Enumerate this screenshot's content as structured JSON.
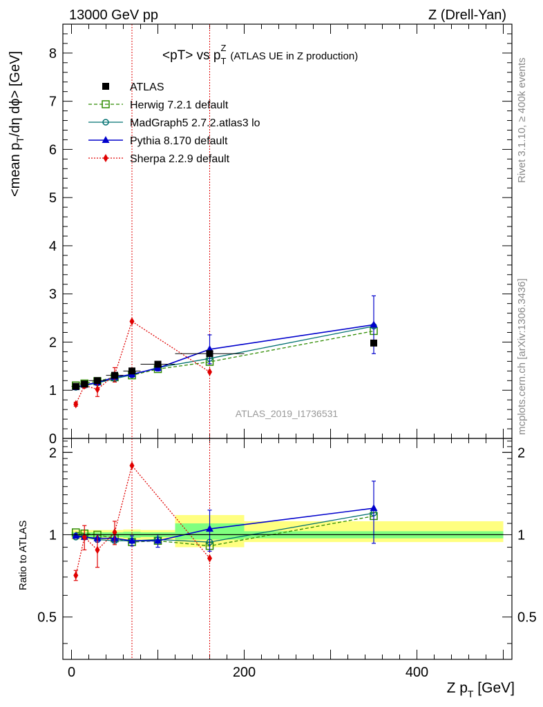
{
  "header": {
    "left": "13000 GeV pp",
    "right": "Z (Drell-Yan)"
  },
  "side": {
    "rivet": "Rivet 3.1.10, ≥ 400k events",
    "mcplots": "mcplots.cern.ch [arXiv:1306.3436]"
  },
  "watermark": "ATLAS_2019_I1736531",
  "colors": {
    "data": "#000000",
    "herwig": "#2e8b00",
    "madgraph": "#007070",
    "pythia": "#0000cc",
    "sherpa": "#e00000",
    "band_inner": "#80ff80",
    "band_outer": "#ffff80"
  },
  "chart_data": [
    {
      "type": "line",
      "panel": "main",
      "title_main": "<pT> vs p",
      "title_sup": "Z",
      "title_sub": "T",
      "title_extra": "(ATLAS UE in Z production)",
      "ylabel_main": "<mean p",
      "ylabel_sub": "T",
      "ylabel_rest": "/dη dϕ> [GeV]",
      "xlim": [
        -10,
        510
      ],
      "ylim": [
        0,
        8.6
      ],
      "yticks": [
        0,
        1,
        2,
        3,
        4,
        5,
        6,
        7,
        8
      ],
      "ytick_labels": [
        "0",
        "1",
        "2",
        "3",
        "4",
        "5",
        "6",
        "7",
        "8"
      ],
      "vlines": [
        70,
        160
      ],
      "legend": [
        "ATLAS",
        "Herwig 7.2.1 default",
        "MadGraph5 2.7.2.atlas3 lo",
        "Pythia 8.170 default",
        "Sherpa 2.2.9 default"
      ],
      "series": [
        {
          "name": "ATLAS",
          "key": "data",
          "x": [
            5,
            15,
            30,
            50,
            70,
            100,
            160,
            350
          ],
          "y": [
            1.08,
            1.13,
            1.2,
            1.31,
            1.4,
            1.54,
            1.76,
            1.98
          ],
          "xerr": [
            5,
            5,
            10,
            10,
            10,
            20,
            40,
            150
          ]
        },
        {
          "name": "Herwig 7.2.1 default",
          "key": "herwig",
          "x": [
            5,
            15,
            30,
            50,
            70,
            100,
            160,
            350
          ],
          "y": [
            1.1,
            1.14,
            1.19,
            1.27,
            1.31,
            1.44,
            1.59,
            2.23
          ]
        },
        {
          "name": "MadGraph5 2.7.2.atlas3 lo",
          "key": "madgraph",
          "x": [
            5,
            15,
            30,
            50,
            70,
            100,
            160,
            350
          ],
          "y": [
            1.06,
            1.1,
            1.15,
            1.24,
            1.32,
            1.47,
            1.66,
            2.33
          ]
        },
        {
          "name": "Pythia 8.170 default",
          "key": "pythia",
          "x": [
            5,
            15,
            30,
            50,
            70,
            100,
            160,
            350
          ],
          "y": [
            1.06,
            1.11,
            1.16,
            1.27,
            1.33,
            1.46,
            1.85,
            2.36
          ],
          "yerr": [
            0.02,
            0.02,
            0.03,
            0.04,
            0.06,
            0.06,
            0.3,
            0.6
          ]
        },
        {
          "name": "Sherpa 2.2.9 default",
          "key": "sherpa",
          "x": [
            5,
            15,
            30,
            50,
            70,
            160
          ],
          "y": [
            0.71,
            1.1,
            1.02,
            1.32,
            2.43,
            1.38
          ],
          "yerr": [
            0.04,
            0.05,
            0.15,
            0.15,
            0,
            0
          ]
        }
      ]
    },
    {
      "type": "line",
      "panel": "ratio",
      "ylabel": "Ratio to ATLAS",
      "xlabel_main": "Z p",
      "xlabel_sub": "T",
      "xlabel_rest": " [GeV]",
      "xlim": [
        -10,
        510
      ],
      "ylim": [
        0.35,
        2.25
      ],
      "yticks": [
        0.5,
        1,
        2
      ],
      "ytick_labels": [
        "0.5",
        "1",
        "2"
      ],
      "xticks": [
        0,
        200,
        400
      ],
      "xtick_labels": [
        "0",
        "200",
        "400"
      ],
      "bands": [
        {
          "x0": 0,
          "x1": 10,
          "inner": [
            0.98,
            1.02
          ],
          "outer": [
            0.96,
            1.04
          ]
        },
        {
          "x0": 10,
          "x1": 20,
          "inner": [
            0.98,
            1.02
          ],
          "outer": [
            0.96,
            1.04
          ]
        },
        {
          "x0": 20,
          "x1": 40,
          "inner": [
            0.98,
            1.02
          ],
          "outer": [
            0.96,
            1.04
          ]
        },
        {
          "x0": 40,
          "x1": 60,
          "inner": [
            0.98,
            1.02
          ],
          "outer": [
            0.96,
            1.04
          ]
        },
        {
          "x0": 60,
          "x1": 80,
          "inner": [
            0.975,
            1.025
          ],
          "outer": [
            0.955,
            1.045
          ]
        },
        {
          "x0": 80,
          "x1": 120,
          "inner": [
            0.98,
            1.02
          ],
          "outer": [
            0.96,
            1.04
          ]
        },
        {
          "x0": 120,
          "x1": 200,
          "inner": [
            0.96,
            1.1
          ],
          "outer": [
            0.9,
            1.18
          ]
        },
        {
          "x0": 200,
          "x1": 500,
          "inner": [
            0.97,
            1.03
          ],
          "outer": [
            0.94,
            1.12
          ]
        }
      ],
      "series": [
        {
          "name": "Herwig 7.2.1 default",
          "key": "herwig",
          "x": [
            5,
            15,
            30,
            50,
            70,
            100,
            160,
            350
          ],
          "y": [
            1.02,
            1.01,
            1.0,
            0.97,
            0.94,
            0.95,
            0.91,
            1.17
          ]
        },
        {
          "name": "MadGraph5 2.7.2.atlas3 lo",
          "key": "madgraph",
          "x": [
            5,
            15,
            30,
            50,
            70,
            100,
            160,
            350
          ],
          "y": [
            0.98,
            0.98,
            0.96,
            0.95,
            0.95,
            0.96,
            0.94,
            1.2
          ]
        },
        {
          "name": "Pythia 8.170 default",
          "key": "pythia",
          "x": [
            5,
            15,
            30,
            50,
            70,
            100,
            160,
            350
          ],
          "y": [
            0.99,
            0.98,
            0.97,
            0.97,
            0.95,
            0.95,
            1.05,
            1.25
          ],
          "yerr": [
            0.02,
            0.02,
            0.03,
            0.03,
            0.04,
            0.05,
            0.18,
            0.32
          ]
        },
        {
          "name": "Sherpa 2.2.9 default",
          "key": "sherpa",
          "x": [
            5,
            15,
            30,
            50,
            70,
            160
          ],
          "y": [
            0.71,
            0.98,
            0.88,
            1.02,
            1.79,
            0.82
          ],
          "yerr": [
            0.03,
            0.1,
            0.12,
            0.1,
            0,
            0
          ]
        }
      ]
    }
  ]
}
